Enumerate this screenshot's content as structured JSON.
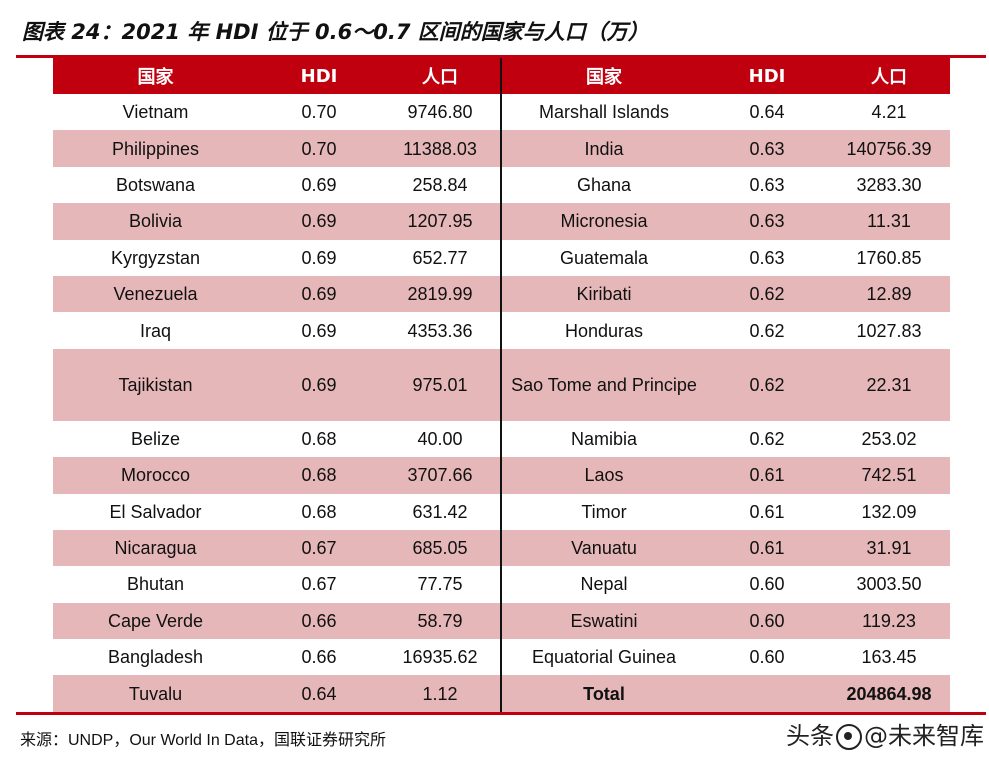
{
  "title": "图表 24：2021 年 HDI 位于 0.6～0.7 区间的国家与人口（万）",
  "headers": [
    "国家",
    "HDI",
    "人口",
    "国家",
    "HDI",
    "人口"
  ],
  "rows": [
    {
      "c1": "Vietnam",
      "h1": "0.70",
      "p1": "9746.80",
      "c2": "Marshall Islands",
      "h2": "0.64",
      "p2": "4.21"
    },
    {
      "c1": "Philippines",
      "h1": "0.70",
      "p1": "11388.03",
      "c2": "India",
      "h2": "0.63",
      "p2": "140756.39"
    },
    {
      "c1": "Botswana",
      "h1": "0.69",
      "p1": "258.84",
      "c2": "Ghana",
      "h2": "0.63",
      "p2": "3283.30"
    },
    {
      "c1": "Bolivia",
      "h1": "0.69",
      "p1": "1207.95",
      "c2": "Micronesia",
      "h2": "0.63",
      "p2": "11.31"
    },
    {
      "c1": "Kyrgyzstan",
      "h1": "0.69",
      "p1": "652.77",
      "c2": "Guatemala",
      "h2": "0.63",
      "p2": "1760.85"
    },
    {
      "c1": "Venezuela",
      "h1": "0.69",
      "p1": "2819.99",
      "c2": "Kiribati",
      "h2": "0.62",
      "p2": "12.89"
    },
    {
      "c1": "Iraq",
      "h1": "0.69",
      "p1": "4353.36",
      "c2": "Honduras",
      "h2": "0.62",
      "p2": "1027.83"
    },
    {
      "c1": "Tajikistan",
      "h1": "0.69",
      "p1": "975.01",
      "c2": "Sao Tome and Principe",
      "h2": "0.62",
      "p2": "22.31"
    },
    {
      "c1": "Belize",
      "h1": "0.68",
      "p1": "40.00",
      "c2": "Namibia",
      "h2": "0.62",
      "p2": "253.02"
    },
    {
      "c1": "Morocco",
      "h1": "0.68",
      "p1": "3707.66",
      "c2": "Laos",
      "h2": "0.61",
      "p2": "742.51"
    },
    {
      "c1": "El Salvador",
      "h1": "0.68",
      "p1": "631.42",
      "c2": "Timor",
      "h2": "0.61",
      "p2": "132.09"
    },
    {
      "c1": "Nicaragua",
      "h1": "0.67",
      "p1": "685.05",
      "c2": "Vanuatu",
      "h2": "0.61",
      "p2": "31.91"
    },
    {
      "c1": "Bhutan",
      "h1": "0.67",
      "p1": "77.75",
      "c2": "Nepal",
      "h2": "0.60",
      "p2": "3003.50"
    },
    {
      "c1": "Cape Verde",
      "h1": "0.66",
      "p1": "58.79",
      "c2": "Eswatini",
      "h2": "0.60",
      "p2": "119.23"
    },
    {
      "c1": "Bangladesh",
      "h1": "0.66",
      "p1": "16935.62",
      "c2": "Equatorial Guinea",
      "h2": "0.60",
      "p2": "163.45"
    },
    {
      "c1": "Tuvalu",
      "h1": "0.64",
      "p1": "1.12",
      "c2": "Total",
      "h2": "",
      "p2": "204864.98"
    }
  ],
  "source": "来源：UNDP，Our World In Data，国联证券研究所",
  "watermark": {
    "prefix": "头条",
    "name": "@未来智库"
  },
  "colors": {
    "accent": "#c1000f",
    "row_shade": "#e6b7b8"
  }
}
